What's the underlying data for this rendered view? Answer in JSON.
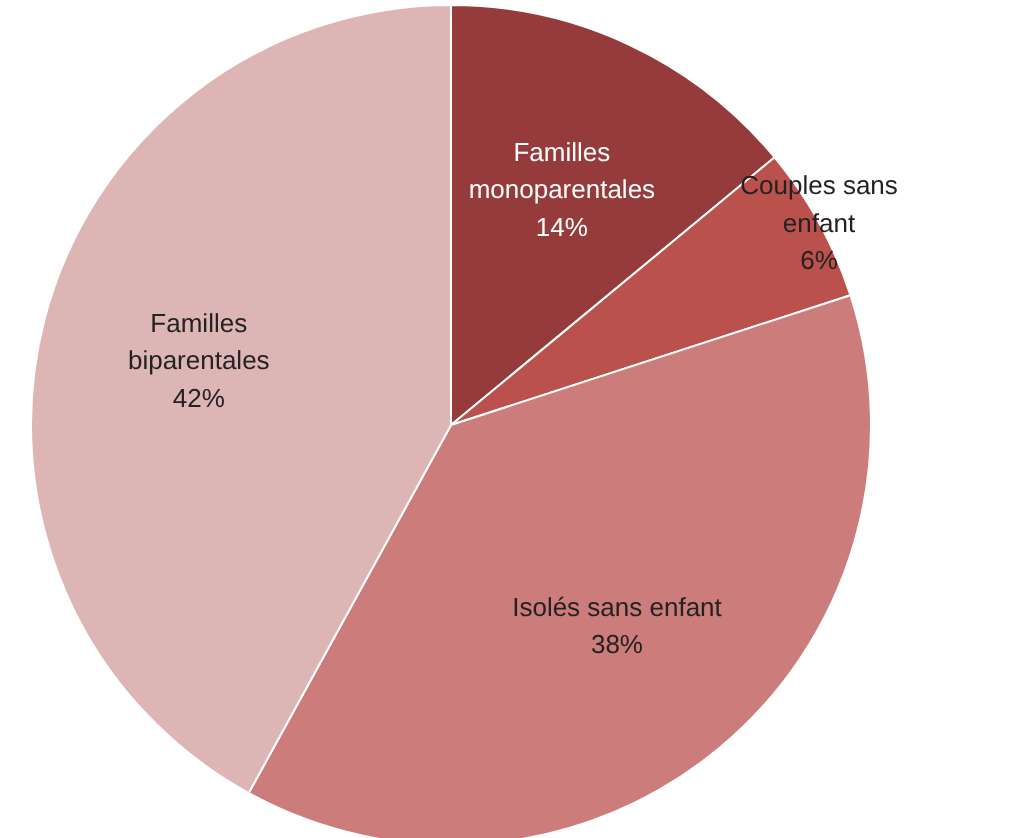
{
  "chart_data": {
    "type": "pie",
    "categories": [
      "Familles\nmonoparentales",
      "Couples sans\nenfant",
      "Isolés sans enfant",
      "Familles\nbiparentales"
    ],
    "values": [
      14,
      6,
      38,
      42
    ],
    "value_labels": [
      "14%",
      "6%",
      "38%",
      "42%"
    ],
    "colors": [
      "#953b3b",
      "#bb514d",
      "#cb7c7b",
      "#ddb5b5"
    ]
  }
}
